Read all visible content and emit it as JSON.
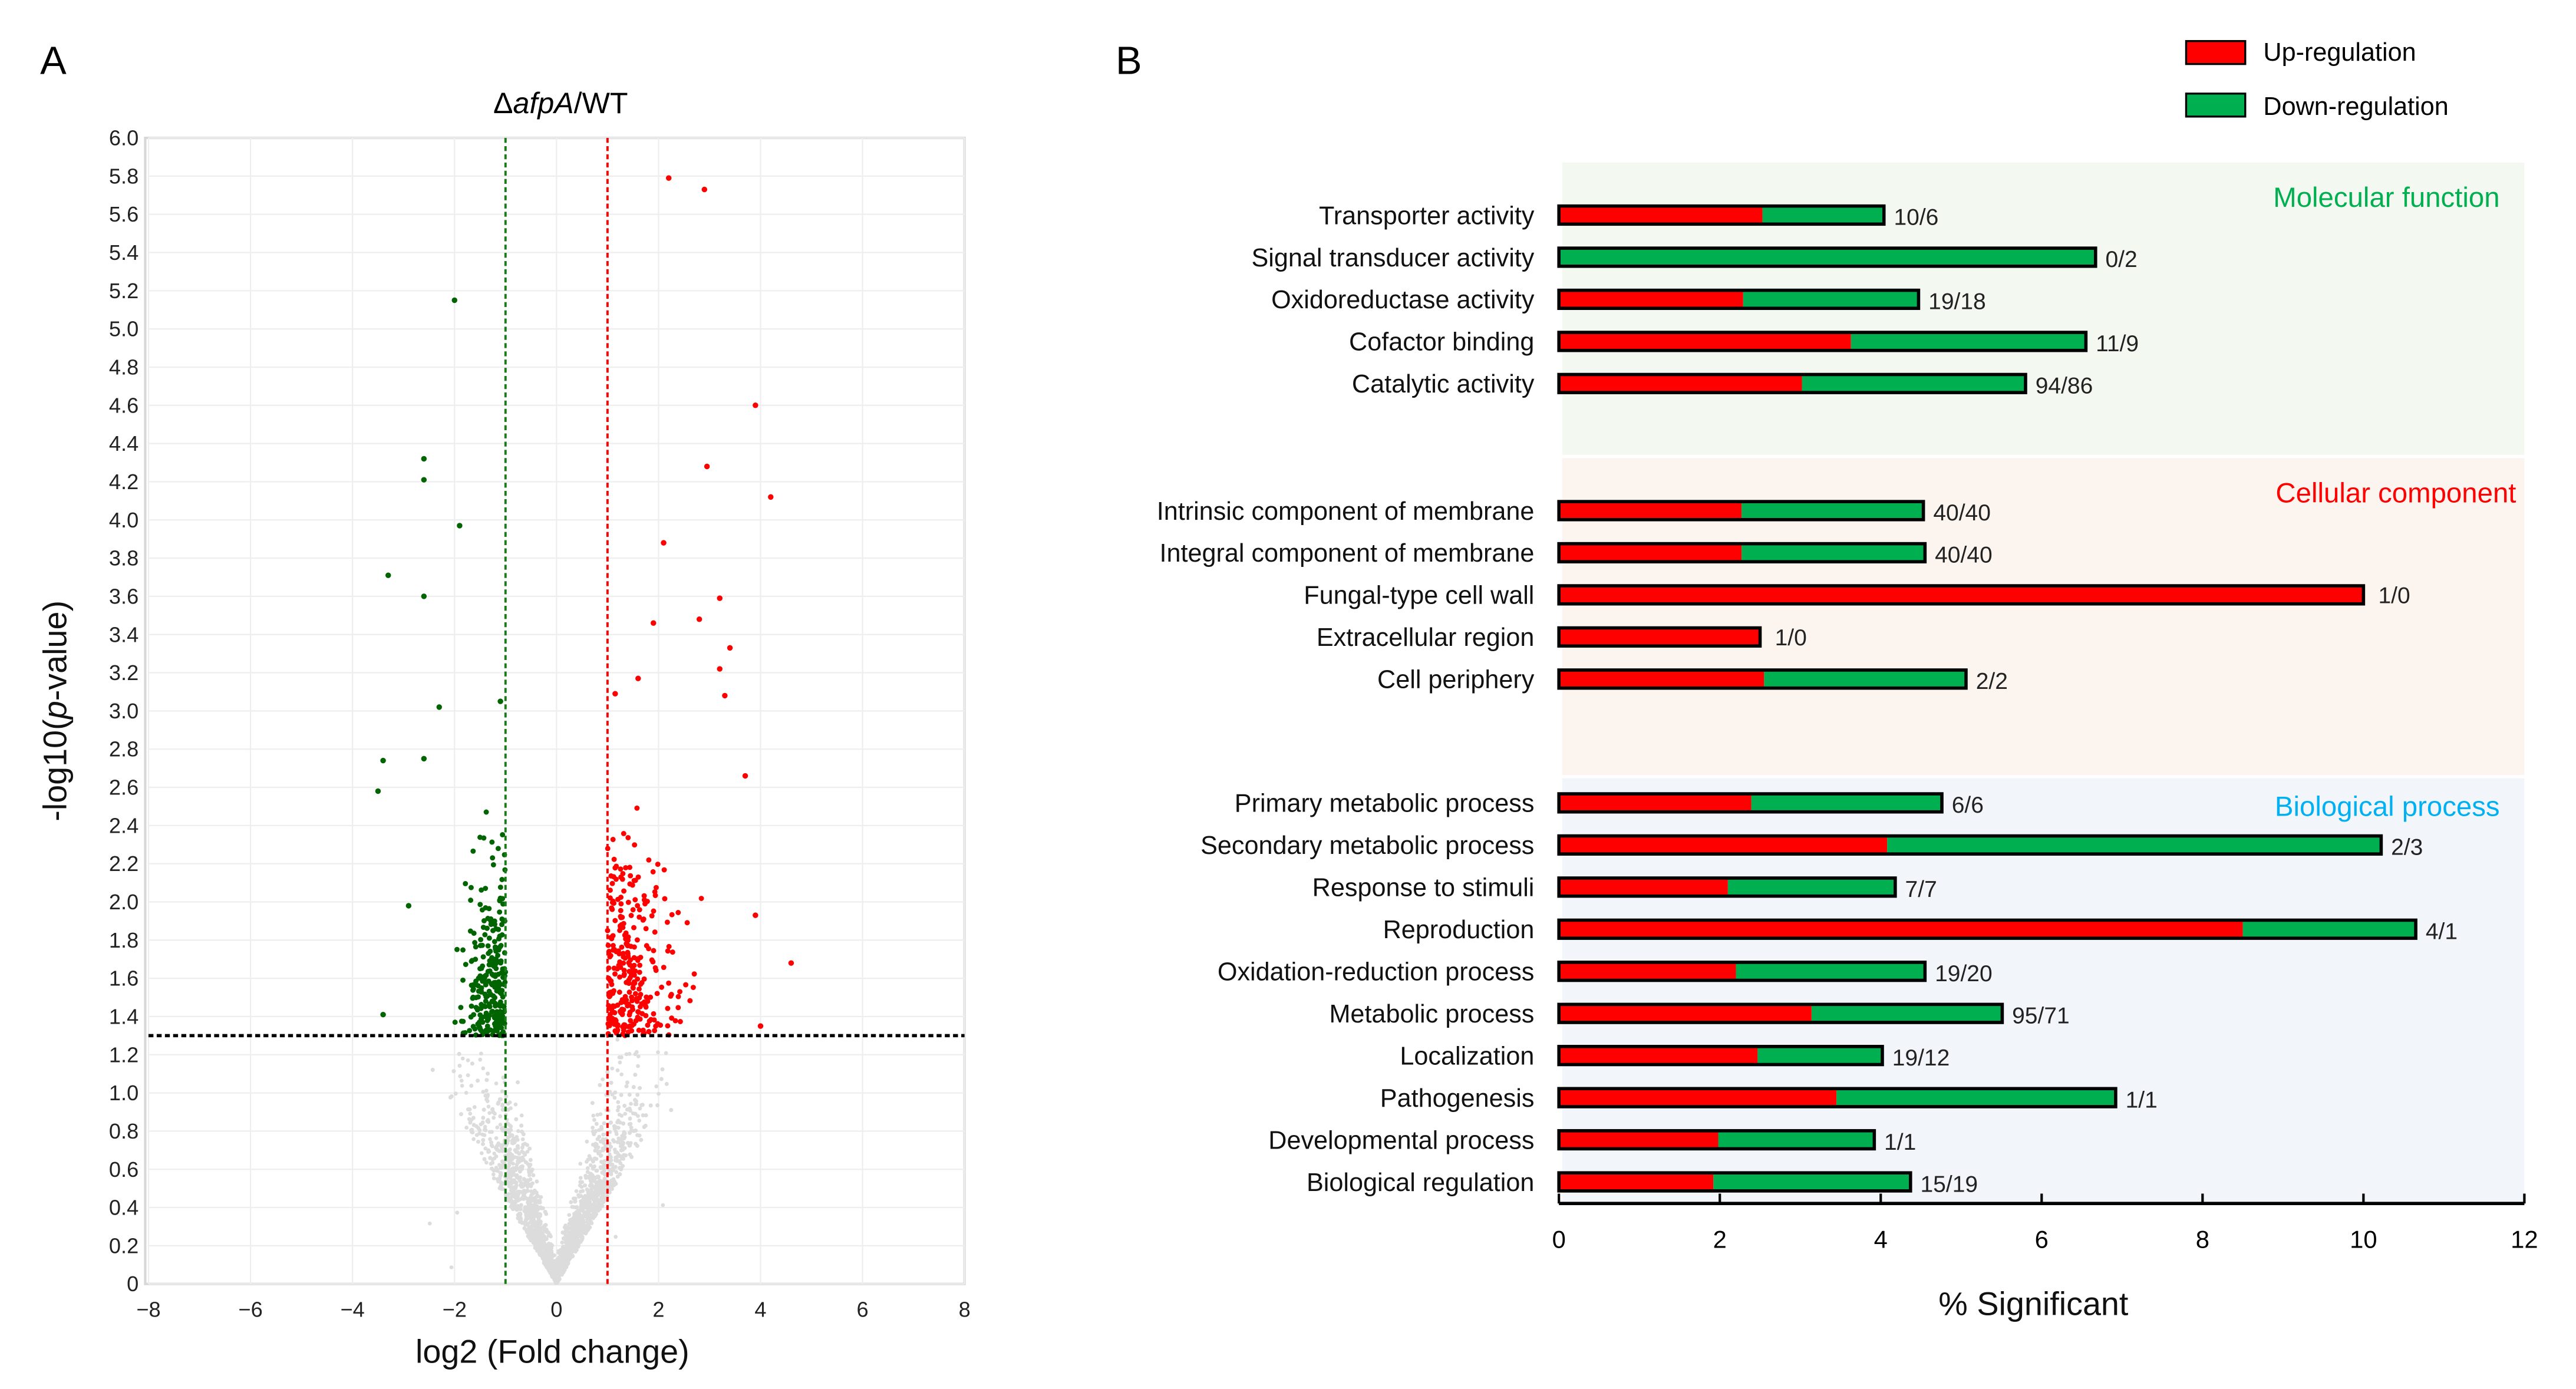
{
  "panels": {
    "a_label": "A",
    "b_label": "B"
  },
  "chart_data": [
    {
      "type": "scatter",
      "title_prefix": "Δ",
      "title_italic": "afpA",
      "title_suffix": "/WT",
      "xlabel": "log2 (Fold change)",
      "ylabel_prefix": "-log10(",
      "ylabel_italic": "p",
      "ylabel_suffix": "-value)",
      "xlim": [
        -8,
        8
      ],
      "ylim": [
        0,
        6
      ],
      "xticks": [
        "−8",
        "−6",
        "−4",
        "−2",
        "0",
        "2",
        "4",
        "6",
        "8"
      ],
      "xtick_values": [
        -8,
        -6,
        -4,
        -2,
        0,
        2,
        4,
        6,
        8
      ],
      "yticks": [
        "0",
        "0.2",
        "0.4",
        "0.6",
        "0.8",
        "1.0",
        "1.2",
        "1.4",
        "1.6",
        "1.8",
        "2.0",
        "2.2",
        "2.4",
        "2.6",
        "2.8",
        "3.0",
        "3.2",
        "3.4",
        "3.6",
        "3.8",
        "4.0",
        "4.2",
        "4.4",
        "4.6",
        "4.8",
        "5.0",
        "5.2",
        "5.4",
        "5.6",
        "5.8",
        "6.0"
      ],
      "grid": true,
      "thresholds": {
        "fc_down": -1,
        "fc_up": 1,
        "p_line": 1.3
      },
      "colors": {
        "up": "#ff0000",
        "down": "#006400",
        "ns": "#dcdcdc",
        "down_line": "#1a7a1a",
        "up_line": "#ff0000",
        "p_line": "#000000"
      },
      "highlight_points": {
        "up": [
          [
            2.2,
            5.79
          ],
          [
            2.9,
            5.73
          ],
          [
            3.9,
            4.6
          ],
          [
            2.95,
            4.28
          ],
          [
            4.2,
            4.12
          ],
          [
            2.1,
            3.88
          ],
          [
            3.2,
            3.59
          ],
          [
            4.6,
            1.68
          ],
          [
            3.7,
            2.66
          ],
          [
            3.4,
            3.33
          ],
          [
            2.8,
            3.48
          ],
          [
            1.9,
            3.46
          ],
          [
            3.2,
            3.22
          ],
          [
            3.3,
            3.08
          ],
          [
            1.15,
            3.09
          ],
          [
            1.6,
            3.17
          ],
          [
            3.9,
            1.93
          ],
          [
            4.0,
            1.35
          ]
        ],
        "down": [
          [
            -2.0,
            5.15
          ],
          [
            -2.6,
            4.32
          ],
          [
            -2.6,
            4.21
          ],
          [
            -1.9,
            3.97
          ],
          [
            -3.3,
            3.71
          ],
          [
            -2.6,
            3.6
          ],
          [
            -2.3,
            3.02
          ],
          [
            -1.1,
            3.05
          ],
          [
            -3.4,
            2.74
          ],
          [
            -3.5,
            2.58
          ],
          [
            -2.6,
            2.75
          ],
          [
            -3.4,
            1.41
          ],
          [
            -2.9,
            1.98
          ]
        ]
      }
    },
    {
      "type": "bar",
      "stacked": true,
      "orientation": "horizontal",
      "xlabel": "% Significant",
      "xlim": [
        0,
        12
      ],
      "xticks": [
        "0",
        "2",
        "4",
        "6",
        "8",
        "10",
        "12"
      ],
      "xtick_values": [
        0,
        2,
        4,
        6,
        8,
        10,
        12
      ],
      "legend": {
        "position": "top-right",
        "entries": [
          "Up-regulation",
          "Down-regulation"
        ]
      },
      "colors": {
        "up": "#ff0000",
        "down": "#00b050",
        "mf": "#00b050",
        "cc": "#ff0000",
        "bp": "#00b0f0"
      },
      "groups": [
        {
          "name": "Molecular function",
          "bg": "#f3f8f1",
          "categories": [
            {
              "label": "Transporter activity",
              "up": 2.53,
              "down": 1.51,
              "counts": "10/6"
            },
            {
              "label": "Signal transducer activity",
              "up": 0,
              "down": 6.67,
              "counts": "0/2"
            },
            {
              "label": "Oxidoreductase activity",
              "up": 2.29,
              "down": 2.18,
              "counts": "19/18"
            },
            {
              "label": "Cofactor binding",
              "up": 3.63,
              "down": 2.92,
              "counts": "11/9"
            },
            {
              "label": "Catalytic activity",
              "up": 3.02,
              "down": 2.78,
              "counts": "94/86"
            }
          ]
        },
        {
          "name": "Cellular component",
          "bg": "#fcf4ee",
          "categories": [
            {
              "label": "Intrinsic component of membrane",
              "up": 2.27,
              "down": 2.26,
              "counts": "40/40"
            },
            {
              "label": "Integral component of membrane",
              "up": 2.27,
              "down": 2.28,
              "counts": "40/40"
            },
            {
              "label": "Fungal-type cell wall",
              "up": 10.0,
              "down": 0,
              "counts": "1/0"
            },
            {
              "label": "Extracellular region",
              "up": 2.5,
              "down": 0,
              "counts": "1/0"
            },
            {
              "label": "Cell periphery",
              "up": 2.55,
              "down": 2.51,
              "counts": "2/2"
            }
          ]
        },
        {
          "name": "Biological process",
          "bg": "#f2f6fb",
          "categories": [
            {
              "label": "Primary metabolic process",
              "up": 2.39,
              "down": 2.37,
              "counts": "6/6"
            },
            {
              "label": "Secondary metabolic process",
              "up": 4.08,
              "down": 6.14,
              "counts": "2/3"
            },
            {
              "label": "Response to stimuli",
              "up": 2.1,
              "down": 2.08,
              "counts": "7/7"
            },
            {
              "label": "Reproduction",
              "up": 8.5,
              "down": 2.15,
              "counts": "4/1"
            },
            {
              "label": "Oxidation-reduction process",
              "up": 2.2,
              "down": 2.35,
              "counts": "19/20"
            },
            {
              "label": "Metabolic process",
              "up": 3.14,
              "down": 2.37,
              "counts": "95/71"
            },
            {
              "label": "Localization",
              "up": 2.47,
              "down": 1.55,
              "counts": "19/12"
            },
            {
              "label": "Pathogenesis",
              "up": 3.45,
              "down": 3.47,
              "counts": "1/1"
            },
            {
              "label": "Developmental process",
              "up": 1.98,
              "down": 1.94,
              "counts": "1/1"
            },
            {
              "label": "Biological regulation",
              "up": 1.92,
              "down": 2.45,
              "counts": "15/19"
            }
          ]
        }
      ]
    }
  ]
}
